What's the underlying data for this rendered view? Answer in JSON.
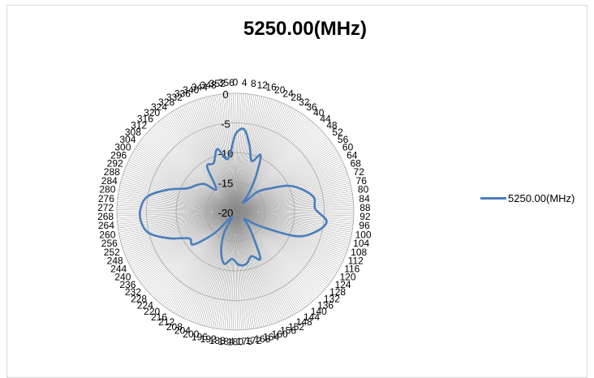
{
  "chart_data": {
    "type": "radar",
    "title": "5250.00(MHz)",
    "angle_unit": "deg",
    "angle_step": 4,
    "r_ticks": [
      -20,
      -15,
      -10,
      -5,
      0
    ],
    "r_min": -20,
    "r_max": 0,
    "series": [
      {
        "name": "5250.00(MHz)",
        "color": "#4a7ebb",
        "angles": [
          0,
          6,
          12,
          18,
          24,
          30,
          36,
          42,
          48,
          56,
          64,
          72,
          80,
          88,
          96,
          104,
          112,
          120,
          128,
          136,
          144,
          152,
          160,
          168,
          176,
          184,
          192,
          200,
          208,
          216,
          224,
          232,
          240,
          248,
          256,
          264,
          272,
          280,
          288,
          296,
          304,
          312,
          320,
          328,
          336,
          344,
          352
        ],
        "values": [
          -7,
          -6,
          -8.5,
          -11,
          -9.5,
          -13,
          -16,
          -18,
          -15,
          -13,
          -10,
          -8,
          -6.5,
          -6.5,
          -4.5,
          -6,
          -9,
          -15,
          -18,
          -17,
          -15,
          -11,
          -12,
          -11,
          -11,
          -12,
          -11,
          -13,
          -16,
          -19,
          -15,
          -11,
          -11,
          -8,
          -5,
          -4,
          -4,
          -5,
          -8,
          -11,
          -12,
          -13,
          -15,
          -11,
          -11,
          -9,
          -11
        ]
      }
    ],
    "angle_labels": [
      "0",
      "4",
      "8",
      "12",
      "16",
      "20",
      "24",
      "28",
      "32",
      "36",
      "40",
      "44",
      "48",
      "52",
      "56",
      "60",
      "64",
      "68",
      "72",
      "76",
      "80",
      "84",
      "88",
      "92",
      "96",
      "100",
      "104",
      "108",
      "112",
      "116",
      "120",
      "124",
      "128",
      "132",
      "136",
      "140",
      "144",
      "148",
      "152",
      "156",
      "160",
      "164",
      "168",
      "172",
      "176",
      "180",
      "184",
      "188",
      "192",
      "196",
      "200",
      "204",
      "208",
      "212",
      "216",
      "220",
      "224",
      "228",
      "232",
      "236",
      "240",
      "244",
      "248",
      "252",
      "256",
      "260",
      "264",
      "268",
      "272",
      "276",
      "280",
      "284",
      "288",
      "292",
      "296",
      "300",
      "304",
      "308",
      "312",
      "316",
      "320",
      "324",
      "328",
      "332",
      "336",
      "340",
      "344",
      "348",
      "352",
      "356"
    ],
    "legend": {
      "position": "right",
      "label": "5250.00(MHz)"
    }
  }
}
